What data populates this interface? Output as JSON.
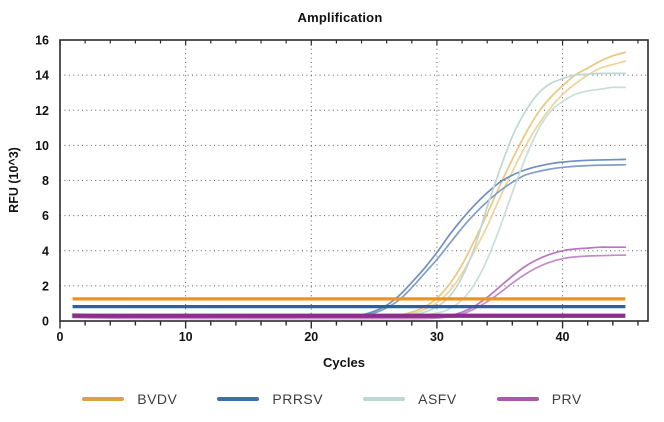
{
  "chart_data": {
    "type": "line",
    "title": "Amplification",
    "xlabel": "Cycles",
    "ylabel": "RFU (10^3)",
    "xlim": [
      0,
      46.8
    ],
    "ylim": [
      0,
      16
    ],
    "x_ticks": [
      0,
      10,
      20,
      30,
      40
    ],
    "x_minor_step": 2,
    "y_ticks": [
      0,
      2,
      4,
      6,
      8,
      10,
      12,
      14,
      16
    ],
    "y_minor_step": 0.5,
    "grid": "dotted",
    "legend_position": "bottom",
    "legend": [
      {
        "label": "BVDV",
        "color": "#D9A43C"
      },
      {
        "label": "PRRSV",
        "color": "#3E6EAE"
      },
      {
        "label": "ASFV",
        "color": "#BDD7D3"
      },
      {
        "label": "PRV",
        "color": "#A75AA7"
      }
    ],
    "threshold_lines": [
      {
        "name": "BVDV-threshold",
        "value": 1.26,
        "color": "#F0921E",
        "width": 3.2,
        "x_start": 1,
        "x_end": 45
      },
      {
        "name": "PRRSV-threshold",
        "value": 0.82,
        "color": "#2D5FA9",
        "width": 3.2,
        "x_start": 1,
        "x_end": 45
      },
      {
        "name": "PRV-threshold",
        "value": 0.3,
        "color": "#8C2F8C",
        "width": 4.2,
        "x_start": 1,
        "x_end": 45
      }
    ],
    "series": [
      {
        "name": "BVDV-rep1",
        "group": "BVDV",
        "color": "#E8C87E",
        "points": [
          [
            1,
            0.38
          ],
          [
            5,
            0.35
          ],
          [
            10,
            0.33
          ],
          [
            15,
            0.32
          ],
          [
            20,
            0.31
          ],
          [
            25,
            0.31
          ],
          [
            26,
            0.32
          ],
          [
            27,
            0.35
          ],
          [
            28,
            0.5
          ],
          [
            29,
            0.8
          ],
          [
            30,
            1.3
          ],
          [
            31,
            2.1
          ],
          [
            32,
            3.2
          ],
          [
            33,
            4.6
          ],
          [
            34,
            6.1
          ],
          [
            35,
            7.7
          ],
          [
            36,
            9.2
          ],
          [
            37,
            10.6
          ],
          [
            38,
            11.8
          ],
          [
            39,
            12.7
          ],
          [
            40,
            13.4
          ],
          [
            41,
            14.0
          ],
          [
            42,
            14.4
          ],
          [
            43,
            14.8
          ],
          [
            44,
            15.1
          ],
          [
            45,
            15.3
          ]
        ]
      },
      {
        "name": "BVDV-rep2",
        "group": "BVDV",
        "color": "#EDD49A",
        "points": [
          [
            1,
            0.32
          ],
          [
            5,
            0.3
          ],
          [
            10,
            0.29
          ],
          [
            15,
            0.28
          ],
          [
            20,
            0.28
          ],
          [
            25,
            0.28
          ],
          [
            27,
            0.3
          ],
          [
            28,
            0.4
          ],
          [
            29,
            0.65
          ],
          [
            30,
            1.05
          ],
          [
            31,
            1.7
          ],
          [
            32,
            2.7
          ],
          [
            33,
            4.0
          ],
          [
            34,
            5.4
          ],
          [
            35,
            7.0
          ],
          [
            36,
            8.5
          ],
          [
            37,
            9.9
          ],
          [
            38,
            11.1
          ],
          [
            39,
            12.1
          ],
          [
            40,
            12.9
          ],
          [
            41,
            13.5
          ],
          [
            42,
            14.0
          ],
          [
            43,
            14.4
          ],
          [
            44,
            14.6
          ],
          [
            45,
            14.8
          ]
        ]
      },
      {
        "name": "PRRSV-rep1",
        "group": "PRRSV",
        "color": "#6E8FC0",
        "points": [
          [
            1,
            0.28
          ],
          [
            5,
            0.26
          ],
          [
            10,
            0.25
          ],
          [
            15,
            0.24
          ],
          [
            20,
            0.24
          ],
          [
            23,
            0.25
          ],
          [
            24,
            0.35
          ],
          [
            25,
            0.55
          ],
          [
            26,
            0.9
          ],
          [
            27,
            1.45
          ],
          [
            28,
            2.2
          ],
          [
            29,
            3.0
          ],
          [
            30,
            3.9
          ],
          [
            31,
            4.9
          ],
          [
            32,
            5.8
          ],
          [
            33,
            6.6
          ],
          [
            34,
            7.3
          ],
          [
            35,
            7.9
          ],
          [
            36,
            8.3
          ],
          [
            37,
            8.6
          ],
          [
            38,
            8.8
          ],
          [
            39,
            8.95
          ],
          [
            40,
            9.05
          ],
          [
            42,
            9.15
          ],
          [
            45,
            9.2
          ]
        ]
      },
      {
        "name": "PRRSV-rep2",
        "group": "PRRSV",
        "color": "#819DC8",
        "points": [
          [
            1,
            0.24
          ],
          [
            5,
            0.22
          ],
          [
            10,
            0.21
          ],
          [
            15,
            0.2
          ],
          [
            20,
            0.2
          ],
          [
            23,
            0.21
          ],
          [
            24,
            0.3
          ],
          [
            25,
            0.45
          ],
          [
            26,
            0.75
          ],
          [
            27,
            1.2
          ],
          [
            28,
            1.9
          ],
          [
            29,
            2.7
          ],
          [
            30,
            3.5
          ],
          [
            31,
            4.4
          ],
          [
            32,
            5.3
          ],
          [
            33,
            6.1
          ],
          [
            34,
            6.8
          ],
          [
            35,
            7.4
          ],
          [
            36,
            7.9
          ],
          [
            37,
            8.3
          ],
          [
            38,
            8.5
          ],
          [
            39,
            8.65
          ],
          [
            40,
            8.75
          ],
          [
            42,
            8.85
          ],
          [
            45,
            8.9
          ]
        ]
      },
      {
        "name": "ASFV-rep1",
        "group": "ASFV",
        "color": "#BED8D4",
        "points": [
          [
            1,
            0.42
          ],
          [
            3,
            0.36
          ],
          [
            5,
            0.33
          ],
          [
            10,
            0.31
          ],
          [
            15,
            0.3
          ],
          [
            20,
            0.3
          ],
          [
            25,
            0.3
          ],
          [
            28,
            0.35
          ],
          [
            29,
            0.5
          ],
          [
            30,
            0.8
          ],
          [
            31,
            1.4
          ],
          [
            32,
            2.5
          ],
          [
            33,
            4.2
          ],
          [
            34,
            6.5
          ],
          [
            35,
            8.6
          ],
          [
            36,
            10.5
          ],
          [
            37,
            11.9
          ],
          [
            38,
            12.9
          ],
          [
            39,
            13.5
          ],
          [
            40,
            13.8
          ],
          [
            41,
            14.0
          ],
          [
            42,
            14.05
          ],
          [
            43,
            14.1
          ],
          [
            44,
            14.1
          ],
          [
            45,
            14.1
          ]
        ]
      },
      {
        "name": "ASFV-rep2",
        "group": "ASFV",
        "color": "#C9DEDA",
        "points": [
          [
            1,
            0.38
          ],
          [
            5,
            0.3
          ],
          [
            10,
            0.28
          ],
          [
            20,
            0.28
          ],
          [
            25,
            0.28
          ],
          [
            28,
            0.3
          ],
          [
            30,
            0.45
          ],
          [
            31,
            0.7
          ],
          [
            32,
            1.2
          ],
          [
            33,
            2.1
          ],
          [
            34,
            3.5
          ],
          [
            35,
            5.3
          ],
          [
            36,
            7.3
          ],
          [
            37,
            9.2
          ],
          [
            38,
            10.8
          ],
          [
            39,
            11.9
          ],
          [
            40,
            12.5
          ],
          [
            41,
            12.9
          ],
          [
            42,
            13.1
          ],
          [
            43,
            13.2
          ],
          [
            44,
            13.3
          ],
          [
            45,
            13.3
          ]
        ]
      },
      {
        "name": "PRV-rep1",
        "group": "PRV",
        "color": "#B678BE",
        "points": [
          [
            1,
            0.38
          ],
          [
            2,
            0.3
          ],
          [
            3,
            0.24
          ],
          [
            5,
            0.19
          ],
          [
            10,
            0.17
          ],
          [
            20,
            0.16
          ],
          [
            28,
            0.16
          ],
          [
            30,
            0.2
          ],
          [
            31,
            0.3
          ],
          [
            32,
            0.5
          ],
          [
            33,
            0.85
          ],
          [
            34,
            1.35
          ],
          [
            35,
            1.95
          ],
          [
            36,
            2.55
          ],
          [
            37,
            3.1
          ],
          [
            38,
            3.5
          ],
          [
            39,
            3.8
          ],
          [
            40,
            4.0
          ],
          [
            41,
            4.1
          ],
          [
            42,
            4.15
          ],
          [
            43,
            4.2
          ],
          [
            44,
            4.2
          ],
          [
            45,
            4.2
          ]
        ]
      },
      {
        "name": "PRV-rep2",
        "group": "PRV",
        "color": "#C38CC9",
        "points": [
          [
            1,
            0.2
          ],
          [
            3,
            0.17
          ],
          [
            5,
            0.15
          ],
          [
            10,
            0.14
          ],
          [
            20,
            0.13
          ],
          [
            28,
            0.13
          ],
          [
            30,
            0.16
          ],
          [
            31,
            0.25
          ],
          [
            32,
            0.4
          ],
          [
            33,
            0.7
          ],
          [
            34,
            1.1
          ],
          [
            35,
            1.6
          ],
          [
            36,
            2.15
          ],
          [
            37,
            2.65
          ],
          [
            38,
            3.05
          ],
          [
            39,
            3.35
          ],
          [
            40,
            3.55
          ],
          [
            41,
            3.65
          ],
          [
            42,
            3.7
          ],
          [
            43,
            3.72
          ],
          [
            44,
            3.74
          ],
          [
            45,
            3.75
          ]
        ]
      }
    ],
    "style": {
      "plot_border_color": "#2b2b2b",
      "grid_color": "#595959",
      "tick_label_color": "#111111",
      "curve_width": 1.7
    }
  }
}
